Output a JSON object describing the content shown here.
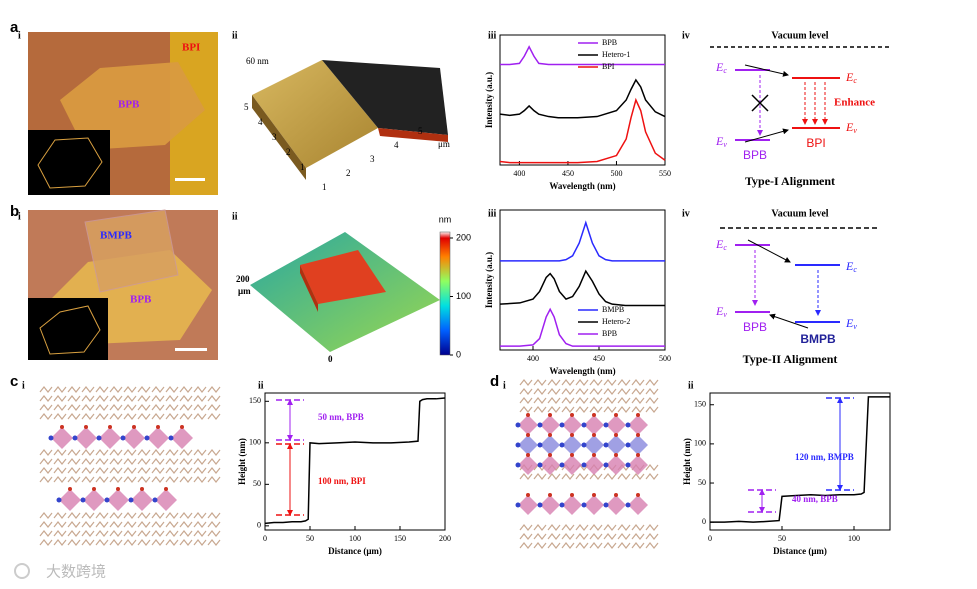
{
  "chart_data": [
    {
      "type": "line",
      "xlabel": "Wavelength (nm)",
      "ylabel": "Intensity (a.u.)",
      "legend": "upper right",
      "x": [
        380,
        390,
        400,
        405,
        410,
        415,
        420,
        430,
        440,
        460,
        480,
        500,
        510,
        515,
        520,
        525,
        530,
        540,
        550
      ],
      "xlim": [
        380,
        550
      ],
      "xticks": [
        400,
        450,
        500,
        550
      ],
      "ylim": [
        0,
        11
      ],
      "series": [
        {
          "name": "BPB",
          "color": "#a020f0",
          "values": [
            8.5,
            8.5,
            8.6,
            9.2,
            10,
            9.2,
            8.6,
            8.5,
            8.5,
            8.5,
            8.5,
            8.5,
            8.5,
            8.5,
            8.5,
            8.5,
            8.5,
            8.5,
            8.5
          ]
        },
        {
          "name": "Hetero-1",
          "color": "#000000",
          "values": [
            4.3,
            4.2,
            4.3,
            4.6,
            5.0,
            4.6,
            4.3,
            4.1,
            4.0,
            4.0,
            4.1,
            4.6,
            5.5,
            6.4,
            7.2,
            6.6,
            5.5,
            4.5,
            4.1
          ]
        },
        {
          "name": "BPI",
          "color": "#ee1111",
          "values": [
            0.3,
            0.2,
            0.2,
            0.2,
            0.2,
            0.2,
            0.2,
            0.2,
            0.2,
            0.2,
            0.3,
            0.8,
            2.2,
            4.0,
            5.5,
            4.6,
            2.8,
            1.0,
            0.4
          ]
        }
      ]
    },
    {
      "type": "line",
      "xlabel": "Wavelength (nm)",
      "ylabel": "Intensity (a.u.)",
      "legend": "lower right",
      "x": [
        375,
        390,
        400,
        405,
        410,
        413,
        416,
        420,
        425,
        430,
        435,
        440,
        445,
        450,
        455,
        460,
        470,
        480,
        500
      ],
      "xlim": [
        375,
        500
      ],
      "xticks": [
        400,
        450,
        500
      ],
      "ylim": [
        0,
        11
      ],
      "series": [
        {
          "name": "BMPB",
          "color": "#2a2aff",
          "values": [
            7,
            7,
            7,
            7,
            7,
            7,
            7,
            7,
            7.1,
            7.4,
            8.4,
            10,
            8.4,
            7.4,
            7.1,
            7,
            7,
            7,
            7
          ]
        },
        {
          "name": "Hetero-2",
          "color": "#000000",
          "values": [
            3.6,
            3.7,
            4.0,
            4.6,
            5.7,
            6.0,
            5.6,
            4.6,
            4.0,
            4.2,
            5.0,
            6.2,
            5.4,
            4.4,
            3.8,
            3.6,
            3.5,
            3.5,
            3.5
          ]
        },
        {
          "name": "BPB",
          "color": "#a020f0",
          "values": [
            0.3,
            0.3,
            0.4,
            0.9,
            2.6,
            3.2,
            2.6,
            1.2,
            0.5,
            0.3,
            0.3,
            0.3,
            0.3,
            0.3,
            0.3,
            0.3,
            0.3,
            0.3,
            0.3
          ]
        }
      ]
    },
    {
      "type": "line",
      "xlabel": "Distance (μm)",
      "ylabel": "Height (nm)",
      "color": "#000000",
      "x": [
        0,
        10,
        20,
        30,
        40,
        45,
        48,
        50,
        60,
        80,
        100,
        120,
        140,
        160,
        170,
        172,
        175,
        180,
        190,
        200
      ],
      "values": [
        3,
        4,
        4,
        5,
        5,
        6,
        8,
        100,
        99,
        100,
        101,
        100,
        100,
        101,
        102,
        150,
        152,
        153,
        153,
        154
      ],
      "xlim": [
        0,
        200
      ],
      "xticks": [
        0,
        50,
        100,
        150,
        200
      ],
      "ylim": [
        -5,
        160
      ],
      "yticks": [
        0,
        50,
        100,
        150
      ],
      "annotations": [
        {
          "text": "50 nm, BPB",
          "color": "#a020f0"
        },
        {
          "text": "100 nm, BPI",
          "color": "#ee1111"
        }
      ]
    },
    {
      "type": "line",
      "xlabel": "Distance (μm)",
      "ylabel": "Height (nm)",
      "color": "#000000",
      "x": [
        0,
        10,
        20,
        30,
        40,
        48,
        50,
        60,
        70,
        80,
        90,
        100,
        105,
        107,
        110,
        115,
        120,
        125
      ],
      "values": [
        0,
        0,
        1,
        0,
        1,
        2,
        33,
        34,
        35,
        34,
        35,
        35,
        36,
        38,
        160,
        160,
        160,
        160
      ],
      "xlim": [
        0,
        125
      ],
      "xticks": [
        0,
        50,
        100
      ],
      "ylim": [
        -10,
        165
      ],
      "yticks": [
        0,
        50,
        100,
        150
      ],
      "annotations": [
        {
          "text": "120 nm, BMPB",
          "color": "#2a2aff"
        },
        {
          "text": "40 nm, BPB",
          "color": "#a020f0"
        }
      ]
    }
  ],
  "panel_letters": [
    "a",
    "b",
    "c",
    "d"
  ],
  "a_i": {
    "sub": "i",
    "labels": [
      "BPI",
      "BPB"
    ]
  },
  "a_ii": {
    "sub": "ii",
    "height": "60 nm",
    "ticks": [
      1,
      2,
      3,
      4,
      5
    ],
    "unit": "μm"
  },
  "a_iii": {
    "sub": "iii"
  },
  "a_iv": {
    "sub": "iv",
    "vacuum": "Vacuum level",
    "Ec": [
      "E",
      "c"
    ],
    "Ev": [
      "E",
      "v"
    ],
    "enhance": "Enhance",
    "left": "BPB",
    "right": "BPI",
    "caption": "Type-I Alignment"
  },
  "b_i": {
    "sub": "i",
    "labels": [
      "BMPB",
      "BPB"
    ]
  },
  "b_ii": {
    "sub": "ii",
    "unit": "nm",
    "colorbar_ticks": [
      0,
      100,
      200
    ],
    "scale": "200",
    "scale_unit": "μm",
    "origin": "0"
  },
  "b_iii": {
    "sub": "iii"
  },
  "b_iv": {
    "sub": "iv",
    "vacuum": "Vacuum level",
    "Ec": [
      "E",
      "c"
    ],
    "Ev": [
      "E",
      "v"
    ],
    "left": "BPB",
    "right": "BMPB",
    "caption": "Type-II Alignment"
  },
  "c_i": {
    "sub": "i"
  },
  "c_ii": {
    "sub": "ii"
  },
  "d_i": {
    "sub": "i"
  },
  "d_ii": {
    "sub": "ii"
  },
  "watermark": "大数跨境"
}
